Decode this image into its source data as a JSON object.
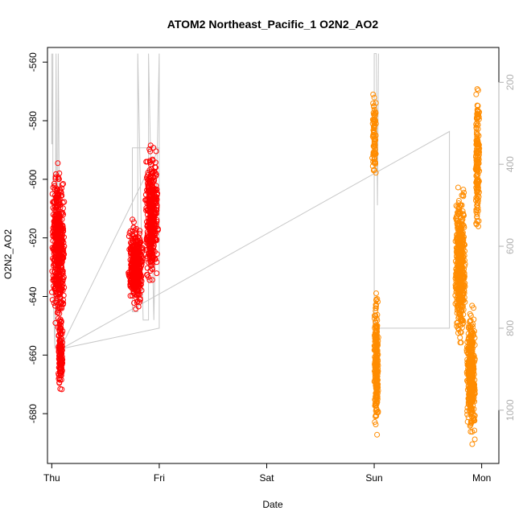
{
  "chart_data": {
    "type": "scatter",
    "title": "ATOM2 Northeast_Pacific_1 O2N2_AO2",
    "xlabel": "Date",
    "ylabel": "O2N2_AO2",
    "xlim": [
      -0.04,
      4.16
    ],
    "ylim": [
      -697,
      -555
    ],
    "x_ticks": [
      {
        "value": 0,
        "label": "Thu"
      },
      {
        "value": 1,
        "label": "Fri"
      },
      {
        "value": 2,
        "label": "Sat"
      },
      {
        "value": 3,
        "label": "Sun"
      },
      {
        "value": 4,
        "label": "Mon"
      }
    ],
    "y_ticks": [
      -680,
      -660,
      -640,
      -620,
      -600,
      -580,
      -560
    ],
    "right_axis": {
      "description": "secondary depth-like axis drawn in grey (inverted)",
      "ylim_top": 115,
      "ylim_bottom": 1130,
      "ticks": [
        200,
        400,
        600,
        800,
        1000
      ],
      "color": "#b0b0b0"
    },
    "series": [
      {
        "color": "#ff0000",
        "marker": "open-circle",
        "clusters": [
          {
            "x_center": 0.06,
            "x_spread": 0.06,
            "y_min": -654,
            "y_max": -592,
            "n": 520
          },
          {
            "x_center": 0.08,
            "x_spread": 0.025,
            "y_min": -676,
            "y_max": -643,
            "n": 140
          },
          {
            "x_center": 0.78,
            "x_spread": 0.07,
            "y_min": -646,
            "y_max": -612,
            "n": 380
          },
          {
            "x_center": 0.93,
            "x_spread": 0.06,
            "y_min": -640,
            "y_max": -584,
            "n": 420
          }
        ]
      },
      {
        "color": "#ff8c00",
        "marker": "open-circle",
        "clusters": [
          {
            "x_center": 3.0,
            "x_spread": 0.02,
            "y_min": -608,
            "y_max": -566,
            "n": 90
          },
          {
            "x_center": 3.02,
            "x_spread": 0.02,
            "y_min": -690,
            "y_max": -636,
            "n": 260
          },
          {
            "x_center": 3.8,
            "x_spread": 0.05,
            "y_min": -660,
            "y_max": -598,
            "n": 520
          },
          {
            "x_center": 3.9,
            "x_spread": 0.04,
            "y_min": -692,
            "y_max": -640,
            "n": 420
          },
          {
            "x_center": 3.96,
            "x_spread": 0.02,
            "y_min": -625,
            "y_max": -560,
            "n": 160
          }
        ]
      }
    ],
    "depth_line": {
      "color": "#c8c8c8",
      "points": [
        [
          0.0,
          130
        ],
        [
          0.0,
          350
        ],
        [
          0.005,
          350
        ],
        [
          0.01,
          130
        ],
        [
          0.01,
          700
        ],
        [
          0.03,
          850
        ],
        [
          0.04,
          130
        ],
        [
          0.05,
          760
        ],
        [
          0.06,
          130
        ],
        [
          0.08,
          850
        ],
        [
          1.0,
          360
        ],
        [
          0.75,
          360
        ],
        [
          0.75,
          760
        ],
        [
          0.8,
          760
        ],
        [
          0.8,
          130
        ],
        [
          0.85,
          780
        ],
        [
          0.9,
          780
        ],
        [
          0.9,
          130
        ],
        [
          0.95,
          780
        ],
        [
          1.0,
          130
        ],
        [
          1.0,
          800
        ],
        [
          0.09,
          850
        ],
        [
          3.7,
          320
        ],
        [
          3.7,
          800
        ],
        [
          3.0,
          800
        ],
        [
          3.0,
          130
        ],
        [
          3.02,
          130
        ],
        [
          3.03,
          500
        ],
        [
          3.04,
          130
        ]
      ]
    }
  }
}
